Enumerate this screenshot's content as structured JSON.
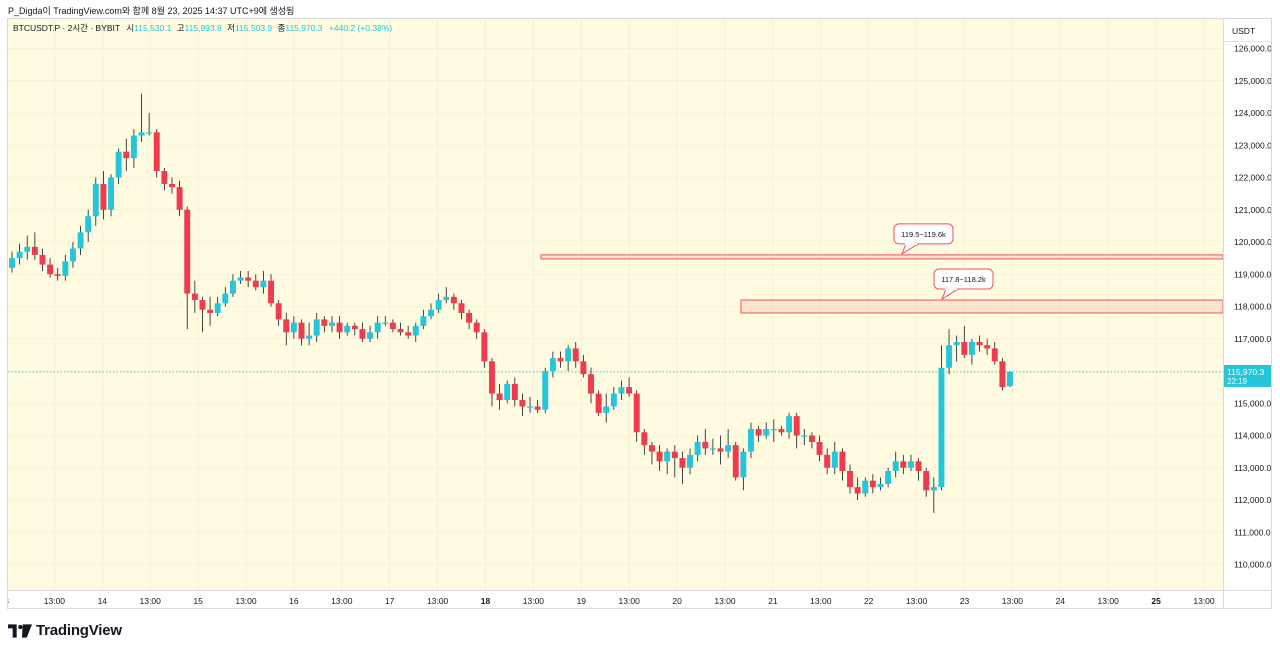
{
  "header": {
    "caption": "P_Digda이 TradingView.com와 함께 8월 23, 2025 14:37 UTC+9에 생성됨"
  },
  "legend": {
    "symbol": "BTCUSDT.P · 2시간 · BYBIT",
    "open_label": "시",
    "open": "115,530.1",
    "high_label": "고",
    "high": "115,993.8",
    "low_label": "저",
    "low": "115,503.9",
    "close_label": "종",
    "close": "115,970.3",
    "change": "+440.2 (+0.38%)"
  },
  "price_axis": {
    "currency": "USDT",
    "last_price": "115,970.3",
    "countdown": "22:19"
  },
  "brand": {
    "name": "TradingView"
  },
  "colors": {
    "background": "#fffbe0",
    "up": "#26c6da",
    "down": "#ef3b4e",
    "zone": "#f1525b",
    "grid": "#f0ead0"
  },
  "chart_data": {
    "type": "candlestick",
    "y_ticks": [
      110000,
      111000,
      112000,
      113000,
      114000,
      115000,
      116000,
      117000,
      118000,
      119000,
      120000,
      121000,
      122000,
      123000,
      124000,
      125000,
      126000
    ],
    "y_tick_labels": [
      "110,000.0",
      "111,000.0",
      "112,000.0",
      "113,000.0",
      "114,000.0",
      "115,000.0",
      "116,000.0",
      "117,000.0",
      "118,000.0",
      "119,000.0",
      "120,000.0",
      "121,000.0",
      "122,000.0",
      "123,000.0",
      "124,000.0",
      "125,000.0",
      "126,000.0"
    ],
    "x_tick_labels": [
      "3",
      "13:00",
      "14",
      "13:00",
      "15",
      "13:00",
      "16",
      "13:00",
      "17",
      "13:00",
      "18",
      "13:00",
      "19",
      "13:00",
      "20",
      "13:00",
      "21",
      "13:00",
      "22",
      "13:00",
      "23",
      "13:00",
      "24",
      "13:00",
      "25",
      "13:00"
    ],
    "bold_x_labels": [
      "18",
      "25"
    ],
    "last_price": 115970.3,
    "candles": [
      [
        119200,
        119500,
        119050,
        119700
      ],
      [
        119500,
        119700,
        119300,
        119950
      ],
      [
        119700,
        119850,
        119450,
        120200
      ],
      [
        119850,
        119600,
        119450,
        120300
      ],
      [
        119600,
        119300,
        119100,
        119800
      ],
      [
        119300,
        119000,
        118900,
        119500
      ],
      [
        119000,
        118950,
        118800,
        119200
      ],
      [
        118950,
        119400,
        118800,
        119600
      ],
      [
        119400,
        119800,
        119200,
        120000
      ],
      [
        119800,
        120300,
        119600,
        120500
      ],
      [
        120300,
        120800,
        120000,
        121000
      ],
      [
        120800,
        121800,
        120500,
        122000
      ],
      [
        121800,
        121000,
        120700,
        122200
      ],
      [
        121000,
        122000,
        120800,
        122100
      ],
      [
        122000,
        122800,
        121800,
        122900
      ],
      [
        122800,
        122600,
        122200,
        123200
      ],
      [
        122600,
        123300,
        122300,
        123500
      ],
      [
        123300,
        123400,
        123100,
        124600
      ],
      [
        123400,
        123400,
        123300,
        124000
      ],
      [
        123400,
        122200,
        122000,
        123500
      ],
      [
        122200,
        121800,
        121600,
        122300
      ],
      [
        121800,
        121700,
        121500,
        122000
      ],
      [
        121700,
        121000,
        120800,
        121900
      ],
      [
        121000,
        118400,
        117300,
        121100
      ],
      [
        118400,
        118200,
        117800,
        118800
      ],
      [
        118200,
        117900,
        117200,
        118300
      ],
      [
        117900,
        117800,
        117400,
        118300
      ],
      [
        117800,
        118100,
        117700,
        118300
      ],
      [
        118100,
        118400,
        118000,
        118600
      ],
      [
        118400,
        118800,
        118300,
        119000
      ],
      [
        118800,
        118900,
        118700,
        119100
      ],
      [
        118900,
        118800,
        118600,
        119100
      ],
      [
        118800,
        118600,
        118500,
        119000
      ],
      [
        118600,
        118800,
        118400,
        119100
      ],
      [
        118800,
        118100,
        118000,
        119000
      ],
      [
        118100,
        117600,
        117400,
        118200
      ],
      [
        117600,
        117200,
        116800,
        117800
      ],
      [
        117200,
        117500,
        117000,
        117700
      ],
      [
        117500,
        117000,
        116800,
        117600
      ],
      [
        117000,
        117100,
        116800,
        117500
      ],
      [
        117100,
        117600,
        116900,
        117800
      ],
      [
        117600,
        117400,
        117200,
        117700
      ],
      [
        117400,
        117500,
        117200,
        117700
      ],
      [
        117500,
        117200,
        117000,
        117700
      ],
      [
        117200,
        117400,
        117100,
        117500
      ],
      [
        117400,
        117300,
        117100,
        117500
      ],
      [
        117300,
        117000,
        116900,
        117500
      ],
      [
        117000,
        117200,
        116900,
        117400
      ],
      [
        117200,
        117500,
        117000,
        117700
      ],
      [
        117500,
        117500,
        117400,
        117700
      ],
      [
        117500,
        117300,
        117200,
        117600
      ],
      [
        117300,
        117200,
        117100,
        117500
      ],
      [
        117200,
        117100,
        117000,
        117400
      ],
      [
        117100,
        117400,
        116900,
        117500
      ],
      [
        117400,
        117700,
        117300,
        117900
      ],
      [
        117700,
        117900,
        117600,
        118100
      ],
      [
        117900,
        118200,
        117800,
        118400
      ],
      [
        118200,
        118300,
        118100,
        118600
      ],
      [
        118300,
        118100,
        117900,
        118400
      ],
      [
        118100,
        117800,
        117600,
        118200
      ],
      [
        117800,
        117500,
        117300,
        117900
      ],
      [
        117500,
        117200,
        117000,
        117600
      ],
      [
        117200,
        116300,
        116100,
        117300
      ],
      [
        116300,
        115300,
        114900,
        116400
      ],
      [
        115300,
        115100,
        114800,
        115600
      ],
      [
        115100,
        115600,
        115000,
        115700
      ],
      [
        115600,
        115100,
        114900,
        115800
      ],
      [
        115100,
        114900,
        114600,
        115300
      ],
      [
        114900,
        114900,
        114700,
        115200
      ],
      [
        114900,
        114800,
        114700,
        115100
      ],
      [
        114800,
        116000,
        114700,
        116100
      ],
      [
        116000,
        116400,
        115800,
        116600
      ],
      [
        116400,
        116300,
        116100,
        116600
      ],
      [
        116300,
        116700,
        116000,
        116800
      ],
      [
        116700,
        116300,
        116100,
        116900
      ],
      [
        116300,
        115900,
        115800,
        116500
      ],
      [
        115900,
        115300,
        115000,
        116100
      ],
      [
        115300,
        114700,
        114600,
        115400
      ],
      [
        114700,
        114900,
        114400,
        115300
      ],
      [
        114900,
        115300,
        114800,
        115500
      ],
      [
        115300,
        115500,
        115100,
        115700
      ],
      [
        115500,
        115300,
        115200,
        115800
      ],
      [
        115300,
        114100,
        113800,
        115400
      ],
      [
        114100,
        113700,
        113400,
        114200
      ],
      [
        113700,
        113500,
        113100,
        113800
      ],
      [
        113500,
        113200,
        112900,
        113700
      ],
      [
        113200,
        113500,
        112800,
        113600
      ],
      [
        113500,
        113300,
        112700,
        113700
      ],
      [
        113300,
        113000,
        112500,
        113500
      ],
      [
        113000,
        113400,
        112800,
        113600
      ],
      [
        113400,
        113800,
        113200,
        114000
      ],
      [
        113800,
        113600,
        113400,
        114200
      ],
      [
        113600,
        113600,
        113400,
        113900
      ],
      [
        113600,
        113500,
        113100,
        114000
      ],
      [
        113500,
        113700,
        113300,
        114200
      ],
      [
        113700,
        112700,
        112600,
        113800
      ],
      [
        112700,
        113500,
        112300,
        113600
      ],
      [
        113500,
        114200,
        113300,
        114400
      ],
      [
        114200,
        114000,
        113800,
        114300
      ],
      [
        114000,
        114200,
        113900,
        114400
      ],
      [
        114200,
        114200,
        113800,
        114500
      ],
      [
        114200,
        114100,
        114000,
        114300
      ],
      [
        114100,
        114600,
        113900,
        114700
      ],
      [
        114600,
        114000,
        113600,
        114700
      ],
      [
        114000,
        114000,
        113700,
        114200
      ],
      [
        114000,
        113800,
        113600,
        114100
      ],
      [
        113800,
        113400,
        113200,
        114000
      ],
      [
        113400,
        113000,
        112800,
        113600
      ],
      [
        113000,
        113500,
        112800,
        113800
      ],
      [
        113500,
        112900,
        112600,
        113600
      ],
      [
        112900,
        112400,
        112200,
        113100
      ],
      [
        112400,
        112200,
        112000,
        112700
      ],
      [
        112200,
        112600,
        112100,
        112700
      ],
      [
        112600,
        112400,
        112200,
        112800
      ],
      [
        112400,
        112500,
        112300,
        112700
      ],
      [
        112500,
        112900,
        112400,
        113000
      ],
      [
        112900,
        113200,
        112700,
        113500
      ],
      [
        113200,
        113000,
        112800,
        113400
      ],
      [
        113000,
        113200,
        112900,
        113400
      ],
      [
        113200,
        112900,
        112600,
        113300
      ],
      [
        112900,
        112300,
        112100,
        113000
      ],
      [
        112300,
        112400,
        111600,
        112700
      ],
      [
        112400,
        116100,
        112300,
        116800
      ],
      [
        116100,
        116800,
        115900,
        117300
      ],
      [
        116800,
        116900,
        116300,
        117100
      ],
      [
        116900,
        116500,
        116400,
        117400
      ],
      [
        116500,
        116900,
        116200,
        117000
      ],
      [
        116900,
        116800,
        116600,
        117100
      ],
      [
        116800,
        116700,
        116500,
        117000
      ],
      [
        116700,
        116300,
        116200,
        116900
      ],
      [
        116300,
        115500,
        115400,
        116400
      ],
      [
        115530.1,
        115970.3,
        115503.9,
        115993.8
      ]
    ],
    "zones": [
      {
        "low": 119500,
        "high": 119600,
        "label": "119.5~119.6k"
      },
      {
        "low": 117800,
        "high": 118200,
        "label": "117.8~118.2k"
      }
    ]
  }
}
